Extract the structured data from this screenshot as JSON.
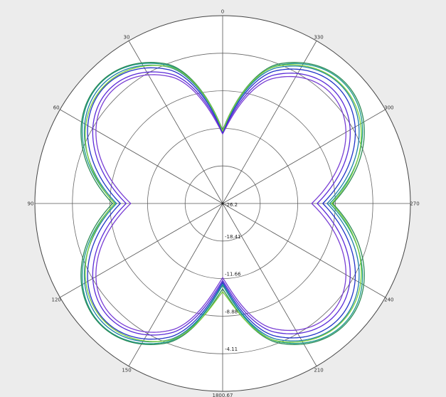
{
  "chart_data": {
    "type": "line",
    "subtype": "polar",
    "title": "",
    "grid": true,
    "legend": "none",
    "background_color": "#ececec",
    "plot_background": "#ffffff",
    "angle_direction": "counterclockwise",
    "angle_zero": "top",
    "angular_ticks": [
      {
        "angle": 0,
        "label": "0"
      },
      {
        "angle": 30,
        "label": "30"
      },
      {
        "angle": 60,
        "label": "60"
      },
      {
        "angle": 90,
        "label": "90"
      },
      {
        "angle": 120,
        "label": "120"
      },
      {
        "angle": 150,
        "label": "150"
      },
      {
        "angle": 180,
        "label": "180"
      },
      {
        "angle": 210,
        "label": "210"
      },
      {
        "angle": 240,
        "label": "240"
      },
      {
        "angle": 270,
        "label": "270"
      },
      {
        "angle": 300,
        "label": "300"
      },
      {
        "angle": 330,
        "label": "330"
      }
    ],
    "radial_range": [
      -26.2,
      0.67
    ],
    "radial_ticks": [
      {
        "value": -26.2,
        "label": "-26.2"
      },
      {
        "value": -18.41,
        "label": "-18.41"
      },
      {
        "value": -11.66,
        "label": "-11.66"
      },
      {
        "value": -8.88,
        "label": "-8.88"
      },
      {
        "value": -4.11,
        "label": "-4.11"
      },
      {
        "value": 0.67,
        "label": "0.67"
      }
    ],
    "radial_tick_rings": [
      0,
      0.2,
      0.4,
      0.6,
      0.8,
      1.0
    ],
    "series": [
      {
        "color": "#7a3fd4",
        "shape": {
          "base": 0.555,
          "lobe": 0.265,
          "harmonic_cos": 0.045,
          "scale_left": 0.96,
          "scale_right": 0.93,
          "top": 0.37,
          "bottom": 0.395
        }
      },
      {
        "color": "#5a2bd8",
        "shape": {
          "base": 0.57,
          "lobe": 0.265,
          "harmonic_cos": 0.04,
          "scale_left": 0.97,
          "scale_right": 0.95,
          "top": 0.375,
          "bottom": 0.41
        }
      },
      {
        "color": "#2233c8",
        "shape": {
          "base": 0.585,
          "lobe": 0.27,
          "harmonic_cos": 0.035,
          "scale_left": 0.99,
          "scale_right": 0.97,
          "top": 0.38,
          "bottom": 0.42
        }
      },
      {
        "color": "#1d7fa8",
        "shape": {
          "base": 0.595,
          "lobe": 0.275,
          "harmonic_cos": 0.03,
          "scale_left": 1.0,
          "scale_right": 0.985,
          "top": 0.385,
          "bottom": 0.43
        }
      },
      {
        "color": "#1a9a8a",
        "shape": {
          "base": 0.6,
          "lobe": 0.28,
          "harmonic_cos": 0.03,
          "scale_left": 1.005,
          "scale_right": 1.0,
          "top": 0.39,
          "bottom": 0.435
        }
      },
      {
        "color": "#2e8b57",
        "shape": {
          "base": 0.605,
          "lobe": 0.28,
          "harmonic_cos": 0.025,
          "scale_left": 1.01,
          "scale_right": 1.01,
          "top": 0.39,
          "bottom": 0.455
        }
      },
      {
        "color": "#7ccf3a",
        "shape": {
          "base": 0.6,
          "lobe": 0.275,
          "harmonic_cos": 0.02,
          "scale_left": 0.99,
          "scale_right": 1.0,
          "top": 0.385,
          "bottom": 0.47
        }
      }
    ]
  }
}
